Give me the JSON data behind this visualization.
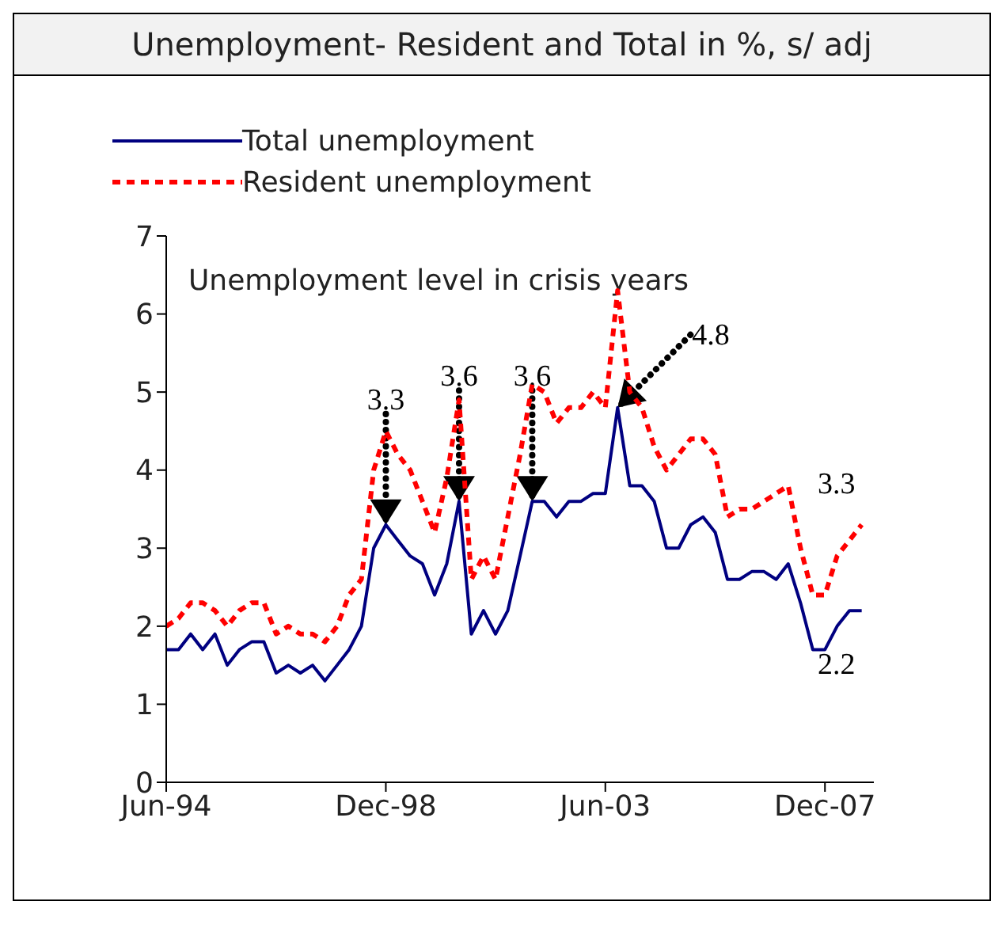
{
  "chart_data": {
    "type": "line",
    "title": "Unemployment- Resident and Total in %, s/ adj",
    "x": [
      "1994-06",
      "1994-09",
      "1994-12",
      "1995-03",
      "1995-06",
      "1995-09",
      "1995-12",
      "1996-03",
      "1996-06",
      "1996-09",
      "1996-12",
      "1997-03",
      "1997-06",
      "1997-09",
      "1997-12",
      "1998-03",
      "1998-06",
      "1998-09",
      "1998-12",
      "1999-03",
      "1999-06",
      "1999-09",
      "1999-12",
      "2000-03",
      "2000-06",
      "2000-09",
      "2000-12",
      "2001-03",
      "2001-06",
      "2001-09",
      "2001-12",
      "2002-03",
      "2002-06",
      "2002-09",
      "2002-12",
      "2003-03",
      "2003-06",
      "2003-09",
      "2003-12",
      "2004-03",
      "2004-06",
      "2004-09",
      "2004-12",
      "2005-03",
      "2005-06",
      "2005-09",
      "2005-12",
      "2006-03",
      "2006-06",
      "2006-09",
      "2006-12",
      "2007-03",
      "2007-06",
      "2007-09",
      "2007-12",
      "2008-03",
      "2008-06",
      "2008-09"
    ],
    "series": [
      {
        "name": "Total unemployment",
        "color": "#000080",
        "line_style": "solid",
        "values": [
          1.7,
          1.7,
          1.9,
          1.7,
          1.9,
          1.5,
          1.7,
          1.8,
          1.8,
          1.4,
          1.5,
          1.4,
          1.5,
          1.3,
          1.5,
          1.7,
          2.0,
          3.0,
          3.3,
          3.1,
          2.9,
          2.8,
          2.4,
          2.8,
          3.6,
          1.9,
          2.2,
          1.9,
          2.2,
          2.9,
          3.6,
          3.6,
          3.4,
          3.6,
          3.6,
          3.7,
          3.7,
          4.8,
          3.8,
          3.8,
          3.6,
          3.0,
          3.0,
          3.3,
          3.4,
          3.2,
          2.6,
          2.6,
          2.7,
          2.7,
          2.6,
          2.8,
          2.3,
          1.7,
          1.7,
          2.0,
          2.2,
          2.2
        ]
      },
      {
        "name": "Resident unemployment",
        "color": "#ff0000",
        "line_style": "dashed",
        "values": [
          2.0,
          2.1,
          2.3,
          2.3,
          2.2,
          2.0,
          2.2,
          2.3,
          2.3,
          1.9,
          2.0,
          1.9,
          1.9,
          1.8,
          2.0,
          2.4,
          2.6,
          4.0,
          4.5,
          4.2,
          4.0,
          3.6,
          3.2,
          3.9,
          4.9,
          2.6,
          2.9,
          2.6,
          3.4,
          4.2,
          5.1,
          5.0,
          4.6,
          4.8,
          4.8,
          5.0,
          4.8,
          6.3,
          5.0,
          4.8,
          4.3,
          4.0,
          4.2,
          4.4,
          4.4,
          4.2,
          3.4,
          3.5,
          3.5,
          3.6,
          3.7,
          3.8,
          3.0,
          2.4,
          2.4,
          2.9,
          3.1,
          3.3
        ]
      }
    ],
    "xlim": [
      "1994-06",
      "2008-12"
    ],
    "xticks": [
      {
        "value": "1994-06",
        "label": "Jun-94"
      },
      {
        "value": "1998-12",
        "label": "Dec-98"
      },
      {
        "value": "2003-06",
        "label": "Jun-03"
      },
      {
        "value": "2007-12",
        "label": "Dec-07"
      }
    ],
    "ylim": [
      0,
      7
    ],
    "yticks": [
      0,
      1,
      2,
      3,
      4,
      5,
      6,
      7
    ],
    "legend": "top left",
    "marker": "none",
    "annotations": [
      "Unemployment level in crisis years",
      {
        "text": "3.3",
        "x": "1998-12",
        "y": 3.3
      },
      {
        "text": "3.6",
        "x": "2000-06",
        "y": 3.6
      },
      {
        "text": "3.6",
        "x": "2001-12",
        "y": 3.6
      },
      {
        "text": "4.8",
        "x": "2003-09",
        "y": 4.8
      },
      {
        "text": "3.3",
        "x": "2008-09",
        "y": 3.3
      },
      {
        "text": "2.2",
        "x": "2008-09",
        "y": 2.2
      }
    ]
  }
}
